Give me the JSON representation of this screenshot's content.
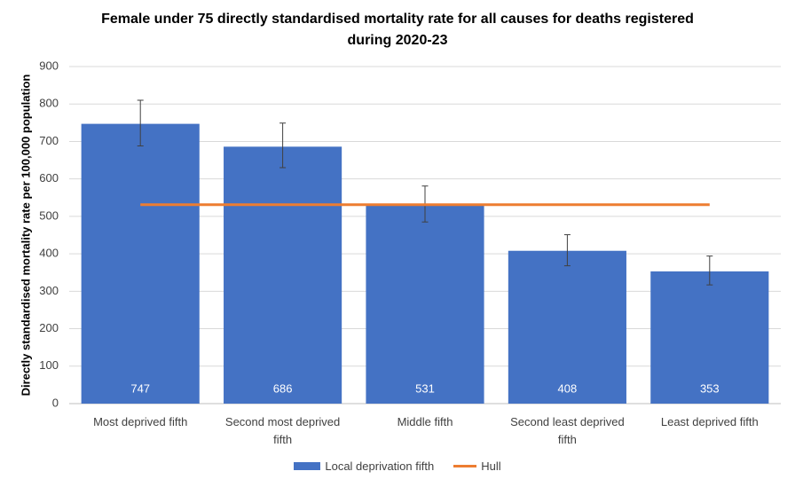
{
  "chart_data": {
    "type": "bar",
    "title": "Female under 75 directly standardised mortality rate for all causes for deaths registered during 2020-23",
    "y_label": "Directly standardised mortality rate per 100,000 population",
    "categories": [
      "Most deprived fifth",
      "Second most deprived fifth",
      "Middle fifth",
      "Second least deprived fifth",
      "Least deprived fifth"
    ],
    "series": [
      {
        "name": "Local deprivation fifth",
        "type": "bar",
        "color": "#4472c4",
        "values": [
          747,
          686,
          531,
          408,
          353
        ],
        "lower": [
          688,
          630,
          485,
          368,
          317
        ],
        "upper": [
          810,
          749,
          581,
          451,
          394
        ]
      },
      {
        "name": "Hull",
        "type": "line",
        "color": "#ed7d31",
        "values": [
          531,
          531,
          531,
          531,
          531
        ]
      }
    ],
    "ylim": [
      0,
      900
    ],
    "yticks": [
      0,
      100,
      200,
      300,
      400,
      500,
      600,
      700,
      800,
      900
    ],
    "grid": true,
    "legend": "bottom"
  }
}
